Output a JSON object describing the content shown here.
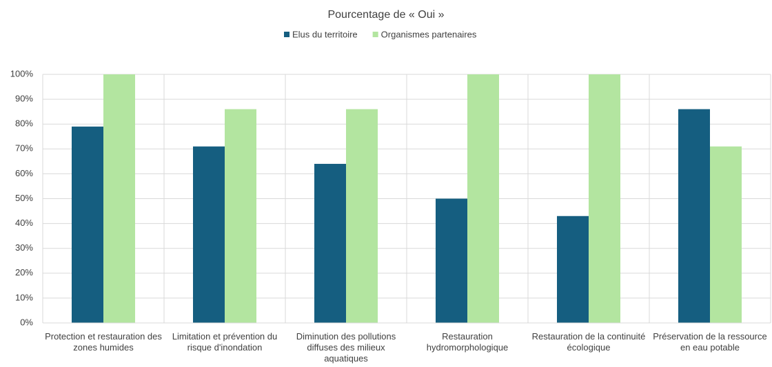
{
  "chart_data": {
    "type": "bar",
    "title": "Pourcentage de « Oui »",
    "categories": [
      "Protection et restauration des zones humides",
      "Limitation et prévention du risque d'inondation",
      "Diminution des pollutions diffuses des milieux aquatiques",
      "Restauration hydromorphologique",
      "Restauration de la continuité écologique",
      "Préservation de la ressource en eau potable"
    ],
    "series": [
      {
        "name": "Elus du territoire",
        "color": "#155e80",
        "values": [
          79,
          71,
          64,
          50,
          43,
          86
        ]
      },
      {
        "name": "Organismes partenaires",
        "color": "#b3e5a0",
        "values": [
          100,
          86,
          86,
          100,
          100,
          71
        ]
      }
    ],
    "ylim": [
      0,
      100
    ],
    "yticks": [
      {
        "value": 0,
        "label": "0%"
      },
      {
        "value": 10,
        "label": "10%"
      },
      {
        "value": 20,
        "label": "20%"
      },
      {
        "value": 30,
        "label": "30%"
      },
      {
        "value": 40,
        "label": "40%"
      },
      {
        "value": 50,
        "label": "50%"
      },
      {
        "value": 60,
        "label": "60%"
      },
      {
        "value": 70,
        "label": "70%"
      },
      {
        "value": 80,
        "label": "80%"
      },
      {
        "value": 90,
        "label": "90%"
      },
      {
        "value": 100,
        "label": "100%"
      }
    ],
    "grid": true,
    "legend": "top"
  }
}
